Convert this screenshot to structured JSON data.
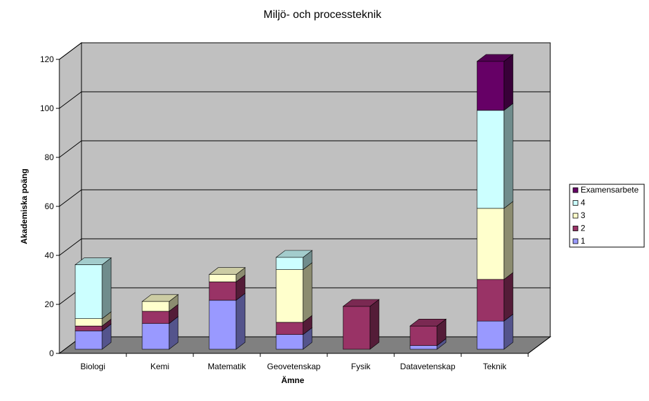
{
  "chart_data": {
    "type": "bar",
    "stacked": true,
    "three_d": true,
    "title": "Miljö- och processteknik",
    "xlabel": "Ämne",
    "ylabel": "Akademiska poäng",
    "ylim": [
      0,
      120
    ],
    "yticks": [
      0,
      20,
      40,
      60,
      80,
      100,
      120
    ],
    "grid": true,
    "legend_position": "right",
    "categories": [
      "Biologi",
      "Kemi",
      "Matematik",
      "Geovetenskap",
      "Fysik",
      "Datavetenskap",
      "Teknik"
    ],
    "series": [
      {
        "name": "1",
        "color": "#9999FF",
        "values": [
          7.5,
          10.5,
          20,
          6,
          0,
          1.5,
          11.5
        ]
      },
      {
        "name": "2",
        "color": "#993366",
        "values": [
          2,
          5,
          7.5,
          5,
          17.5,
          8,
          17
        ]
      },
      {
        "name": "3",
        "color": "#FFFFCC",
        "values": [
          3,
          4,
          3,
          21.5,
          0,
          0,
          29
        ]
      },
      {
        "name": "4",
        "color": "#CCFFFF",
        "values": [
          22,
          0,
          0,
          5,
          0,
          0,
          40
        ]
      },
      {
        "name": "Examensarbete",
        "color": "#660066",
        "values": [
          0,
          0,
          0,
          0,
          0,
          0,
          20
        ]
      }
    ]
  },
  "colors": {
    "wall": "#C0C0C0",
    "floor": "#808080",
    "grid": "#000000"
  }
}
